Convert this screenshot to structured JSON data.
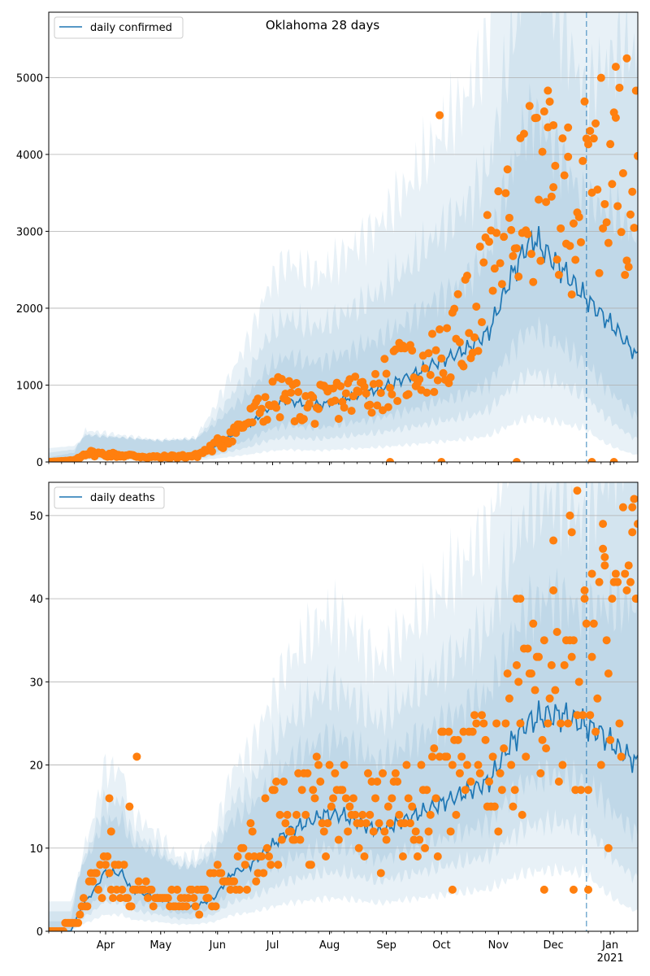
{
  "chart_data": [
    {
      "type": "line",
      "title": "Oklahoma 28 days",
      "series_name": "daily confirmed",
      "ylim": [
        0,
        5850
      ],
      "yticks": [
        0,
        1000,
        2000,
        3000,
        4000,
        5000
      ],
      "grid": "y",
      "legend": "top-left",
      "forecast_start": "2020-12-19",
      "x_start": "2020-03-01",
      "x_end": "2021-01-16",
      "observed_color": "#ff7f0e",
      "line_color": "#1f77b4",
      "band_color": "#1f77b4",
      "model_knots": [
        [
          0,
          0
        ],
        [
          14,
          20
        ],
        [
          20,
          110
        ],
        [
          30,
          100
        ],
        [
          60,
          70
        ],
        [
          80,
          80
        ],
        [
          90,
          200
        ],
        [
          100,
          350
        ],
        [
          110,
          500
        ],
        [
          120,
          700
        ],
        [
          130,
          800
        ],
        [
          140,
          750
        ],
        [
          150,
          750
        ],
        [
          160,
          820
        ],
        [
          170,
          880
        ],
        [
          180,
          950
        ],
        [
          190,
          1050
        ],
        [
          200,
          1150
        ],
        [
          210,
          1280
        ],
        [
          220,
          1380
        ],
        [
          230,
          1500
        ],
        [
          240,
          1700
        ],
        [
          250,
          2300
        ],
        [
          260,
          2800
        ],
        [
          265,
          2900
        ],
        [
          270,
          2750
        ],
        [
          280,
          2500
        ],
        [
          290,
          2200
        ],
        [
          300,
          1950
        ],
        [
          310,
          1700
        ],
        [
          322,
          1330
        ]
      ],
      "band_ratios": [
        [
          0.6,
          1.5
        ],
        [
          0.4,
          2.2
        ],
        [
          0.2,
          3.2
        ]
      ],
      "observed_knots": [
        [
          0,
          0
        ],
        [
          14,
          20
        ],
        [
          20,
          120
        ],
        [
          30,
          100
        ],
        [
          60,
          60
        ],
        [
          80,
          80
        ],
        [
          90,
          200
        ],
        [
          100,
          380
        ],
        [
          110,
          550
        ],
        [
          120,
          800
        ],
        [
          130,
          850
        ],
        [
          140,
          720
        ],
        [
          150,
          750
        ],
        [
          160,
          850
        ],
        [
          170,
          900
        ],
        [
          180,
          1000
        ],
        [
          190,
          1150
        ],
        [
          200,
          1250
        ],
        [
          210,
          1300
        ],
        [
          220,
          1500
        ],
        [
          230,
          1900
        ],
        [
          240,
          2500
        ],
        [
          250,
          3000
        ],
        [
          260,
          3400
        ],
        [
          270,
          3600
        ],
        [
          280,
          3200
        ],
        [
          290,
          3500
        ],
        [
          300,
          3700
        ],
        [
          310,
          3800
        ],
        [
          322,
          3600
        ]
      ],
      "observed_noise": 0.35,
      "observed_extras": [
        [
          94,
          210
        ],
        [
          95,
          180
        ],
        [
          213,
          4510
        ],
        [
          272,
          4830
        ],
        [
          275,
          4380
        ],
        [
          283,
          4350
        ],
        [
          309,
          5140
        ],
        [
          315,
          5250
        ],
        [
          186,
          0
        ],
        [
          214,
          0
        ],
        [
          255,
          0
        ],
        [
          296,
          0
        ],
        [
          308,
          0
        ]
      ]
    },
    {
      "type": "line",
      "title": "",
      "series_name": "daily deaths",
      "ylim": [
        0,
        54
      ],
      "yticks": [
        0,
        10,
        20,
        30,
        40,
        50
      ],
      "grid": "y",
      "legend": "top-left",
      "forecast_start": "2020-12-19",
      "x_start": "2020-03-01",
      "x_end": "2021-01-16",
      "xtick_labels": [
        "Apr",
        "May",
        "Jun",
        "Jul",
        "Aug",
        "Sep",
        "Oct",
        "Nov",
        "Dec",
        "Jan\n2021"
      ],
      "xtick_dates": [
        "2020-04-01",
        "2020-05-01",
        "2020-06-01",
        "2020-07-01",
        "2020-08-01",
        "2020-09-01",
        "2020-10-01",
        "2020-11-01",
        "2020-12-01",
        "2021-01-01"
      ],
      "observed_color": "#ff7f0e",
      "line_color": "#1f77b4",
      "band_color": "#1f77b4",
      "model_knots": [
        [
          0,
          0
        ],
        [
          12,
          0
        ],
        [
          18,
          3
        ],
        [
          25,
          5
        ],
        [
          30,
          7
        ],
        [
          40,
          7
        ],
        [
          45,
          5
        ],
        [
          60,
          4
        ],
        [
          70,
          3
        ],
        [
          80,
          3
        ],
        [
          90,
          4
        ],
        [
          100,
          7
        ],
        [
          110,
          8
        ],
        [
          120,
          10
        ],
        [
          130,
          12
        ],
        [
          140,
          13
        ],
        [
          150,
          14
        ],
        [
          160,
          14
        ],
        [
          170,
          13
        ],
        [
          180,
          12
        ],
        [
          190,
          13
        ],
        [
          200,
          14
        ],
        [
          210,
          15
        ],
        [
          220,
          16
        ],
        [
          230,
          17
        ],
        [
          240,
          18
        ],
        [
          250,
          22
        ],
        [
          260,
          25
        ],
        [
          270,
          26
        ],
        [
          280,
          26
        ],
        [
          290,
          25
        ],
        [
          300,
          24
        ],
        [
          310,
          22
        ],
        [
          322,
          20
        ]
      ],
      "band_ratios": [
        [
          0.72,
          1.4
        ],
        [
          0.5,
          1.9
        ],
        [
          0.28,
          2.6
        ]
      ],
      "observed_knots": [
        [
          0,
          0
        ],
        [
          15,
          1
        ],
        [
          25,
          6
        ],
        [
          30,
          7
        ],
        [
          45,
          5
        ],
        [
          60,
          4
        ],
        [
          75,
          3
        ],
        [
          90,
          5
        ],
        [
          100,
          7
        ],
        [
          110,
          9
        ],
        [
          120,
          12
        ],
        [
          130,
          14
        ],
        [
          140,
          14
        ],
        [
          150,
          15
        ],
        [
          160,
          15
        ],
        [
          170,
          14
        ],
        [
          180,
          13
        ],
        [
          190,
          14
        ],
        [
          200,
          15
        ],
        [
          210,
          16
        ],
        [
          220,
          18
        ],
        [
          230,
          20
        ],
        [
          240,
          20
        ],
        [
          250,
          22
        ],
        [
          260,
          25
        ],
        [
          270,
          28
        ],
        [
          280,
          30
        ],
        [
          290,
          30
        ],
        [
          300,
          32
        ],
        [
          310,
          35
        ],
        [
          322,
          38
        ]
      ],
      "observed_noise": 0.45,
      "observed_extras": [
        [
          33,
          16
        ],
        [
          48,
          21
        ],
        [
          44,
          15
        ],
        [
          34,
          12
        ],
        [
          275,
          47
        ],
        [
          284,
          50
        ],
        [
          288,
          53
        ],
        [
          285,
          48
        ],
        [
          302,
          49
        ],
        [
          318,
          48
        ],
        [
          320,
          40
        ],
        [
          292,
          41
        ],
        [
          296,
          43
        ],
        [
          303,
          44
        ],
        [
          286,
          5
        ],
        [
          294,
          5
        ],
        [
          305,
          10
        ],
        [
          220,
          5
        ],
        [
          270,
          5
        ],
        [
          255,
          40
        ],
        [
          257,
          40
        ]
      ]
    }
  ],
  "legend": {
    "top": {
      "label": "daily confirmed"
    },
    "bottom": {
      "label": "daily deaths"
    }
  },
  "axes": {
    "top_ytick_labels": [
      "0",
      "1000",
      "2000",
      "3000",
      "4000",
      "5000"
    ],
    "bottom_ytick_labels": [
      "0",
      "10",
      "20",
      "30",
      "40",
      "50"
    ],
    "xtick_labels": [
      "Apr",
      "May",
      "Jun",
      "Jul",
      "Aug",
      "Sep",
      "Oct",
      "Nov",
      "Dec",
      "Jan"
    ],
    "year_label": "2021"
  },
  "title": "Oklahoma 28 days"
}
